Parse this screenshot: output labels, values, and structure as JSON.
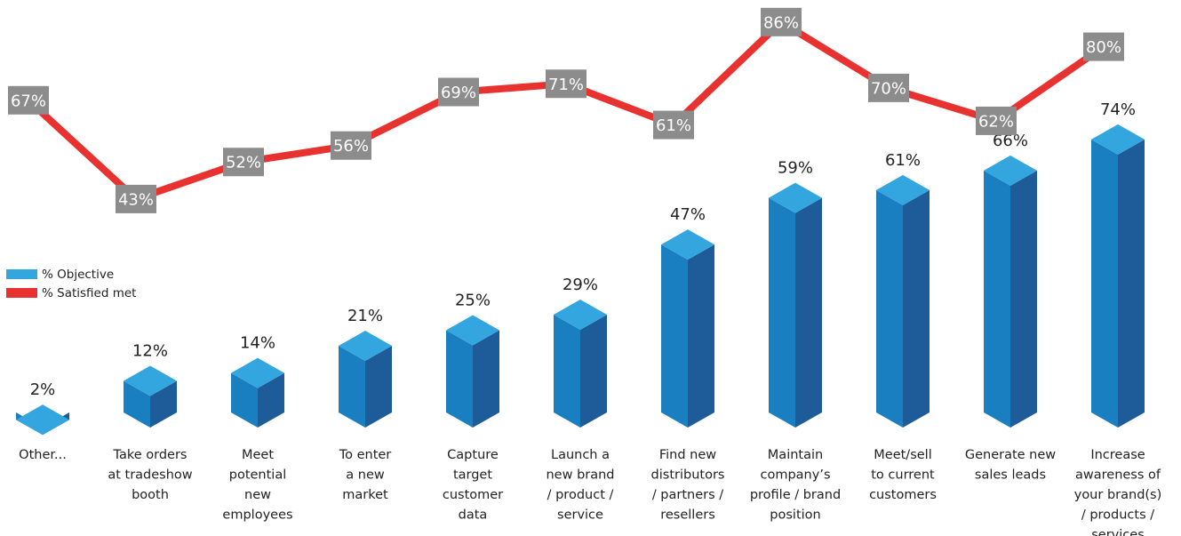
{
  "chart_data": {
    "type": "bar",
    "categories": [
      "Other...",
      "Take orders at tradeshow booth",
      "Meet potential new employees",
      "To enter a new market",
      "Capture target customer data",
      "Launch a new brand / product / service",
      "Find new distributors / partners / resellers",
      "Maintain company’s profile / brand position",
      "Meet/sell to current customers",
      "Generate new sales leads",
      "Increase awareness of your brand(s) / products / services"
    ],
    "category_lines": [
      [
        "Other..."
      ],
      [
        "Take orders",
        "at tradeshow",
        "booth"
      ],
      [
        "Meet",
        "potential",
        "new",
        "employees"
      ],
      [
        "To enter",
        "a new",
        "market"
      ],
      [
        "Capture",
        "target",
        "customer",
        "data"
      ],
      [
        "Launch a",
        "new brand",
        "/ product /",
        "service"
      ],
      [
        "Find new",
        "distributors",
        "/ partners /",
        "resellers"
      ],
      [
        "Maintain",
        "company’s",
        "profile / brand",
        "position"
      ],
      [
        "Meet/sell",
        "to current",
        "customers"
      ],
      [
        "Generate new",
        "sales leads"
      ],
      [
        "Increase",
        "awareness of",
        "your brand(s)",
        "/ products /",
        "services"
      ]
    ],
    "series": [
      {
        "name": "% Objective",
        "type": "bar",
        "color": "#1a7fc1",
        "values": [
          2,
          12,
          14,
          21,
          25,
          29,
          47,
          59,
          61,
          66,
          74
        ],
        "labels": [
          "2%",
          "12%",
          "14%",
          "21%",
          "25%",
          "29%",
          "47%",
          "59%",
          "61%",
          "66%",
          "74%"
        ]
      },
      {
        "name": "% Satisfied met",
        "type": "line",
        "color": "#e8322f",
        "values": [
          67,
          43,
          52,
          56,
          69,
          71,
          61,
          86,
          70,
          62,
          80
        ],
        "labels": [
          "67%",
          "43%",
          "52%",
          "56%",
          "69%",
          "71%",
          "61%",
          "86%",
          "70%",
          "62%",
          "80%"
        ]
      }
    ],
    "colors": {
      "bar_top": "#33a6df",
      "bar_front": "#1a7fc1",
      "bar_side": "#1e5b99",
      "line": "#e8322f",
      "line_label_bg": "#8c8c8c",
      "legend_objective": "#33a6df"
    },
    "grid": false,
    "legend_position": "left-middle"
  }
}
